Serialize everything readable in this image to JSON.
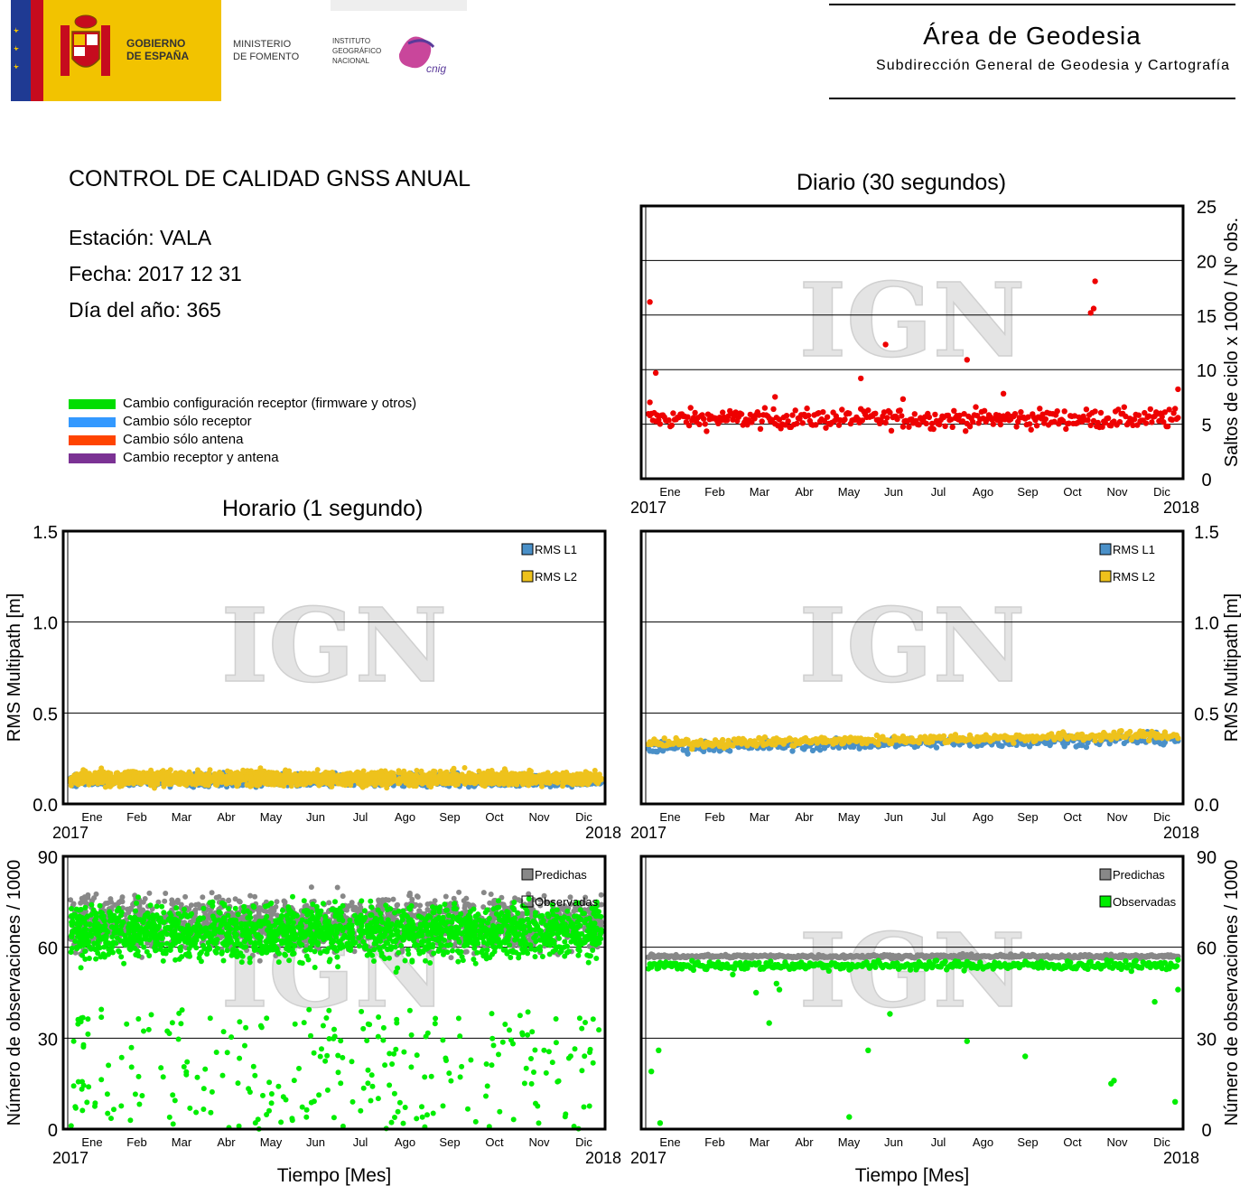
{
  "header": {
    "gobierno": [
      "GOBIERNO",
      "DE ESPAÑA"
    ],
    "ministerio": [
      "MINISTERIO",
      "DE FOMENTO"
    ],
    "instituto": [
      "INSTITUTO",
      "GEOGRÁFICO",
      "NACIONAL"
    ],
    "cnig": "cnig",
    "area_title": "Área de Geodesia",
    "area_subtitle": "Subdirección General de Geodesia y Cartografía"
  },
  "report": {
    "title": "CONTROL DE CALIDAD GNSS ANUAL",
    "station": "Estación: VALA",
    "date": "Fecha: 2017 12 31",
    "doy": "Día del año: 365"
  },
  "legend": [
    {
      "label": "Cambio configuración receptor (firmware y otros)",
      "color": "#00dd00"
    },
    {
      "label": "Cambio sólo receptor",
      "color": "#3399ff"
    },
    {
      "label": "Cambio sólo antena",
      "color": "#ff4400"
    },
    {
      "label": "Cambio receptor y antena",
      "color": "#7b3294"
    }
  ],
  "section_titles": {
    "daily": "Diario (30 segundos)",
    "hourly": "Horario (1 segundo)"
  },
  "watermark": "IGN",
  "axis_labels": {
    "months": [
      "Ene",
      "Feb",
      "Mar",
      "Abr",
      "May",
      "Jun",
      "Jul",
      "Ago",
      "Sep",
      "Oct",
      "Nov",
      "Dic"
    ],
    "year_start": "2017",
    "year_end": "2018",
    "xlabel": "Tiempo [Mes]",
    "ylabel_cycle": "Saltos de ciclo x 1000 / Nº obs.",
    "ylabel_multipath": "RMS Multipath [m]",
    "ylabel_obs": "Número de observaciones / 1000"
  },
  "chart_data": [
    {
      "id": "cycle-slips-daily",
      "type": "scatter",
      "title": "Diario (30 segundos)",
      "ylabel": "Saltos de ciclo x 1000 / Nº obs.",
      "ylim": [
        0,
        25
      ],
      "yticks": [
        0,
        5,
        10,
        15,
        20,
        25
      ],
      "xlim": [
        "2017-01-01",
        "2018-01-01"
      ],
      "grid": true,
      "series": [
        {
          "color": "#ee0000",
          "level": 5.5,
          "spread": 0.9,
          "outliers": [
            [
              1,
              16.2
            ],
            [
              1,
              7
            ],
            [
              5,
              9.7
            ],
            [
              87,
              7.5
            ],
            [
              146,
              9.2
            ],
            [
              163,
              12.3
            ],
            [
              175,
              7.3
            ],
            [
              219,
              10.9
            ],
            [
              244,
              7.8
            ],
            [
              304,
              15.2
            ],
            [
              306,
              15.6
            ],
            [
              307,
              18.1
            ],
            [
              364,
              8.2
            ]
          ]
        }
      ]
    },
    {
      "id": "multipath-hourly",
      "type": "scatter",
      "ylabel": "RMS Multipath [m]",
      "ylim": [
        0,
        1.5
      ],
      "yticks": [
        0,
        0.5,
        1.0,
        1.5
      ],
      "xlim": [
        "2017-01-01",
        "2018-01-01"
      ],
      "grid": true,
      "legend_position": "top-right",
      "series": [
        {
          "name": "RMS L1",
          "color": "#4a90c8",
          "level": 0.13,
          "spread": 0.03
        },
        {
          "name": "RMS L2",
          "color": "#eec21c",
          "level": 0.14,
          "spread": 0.04
        }
      ]
    },
    {
      "id": "multipath-daily",
      "type": "scatter",
      "ylabel": "RMS Multipath [m]",
      "ylim": [
        0,
        1.5
      ],
      "yticks": [
        0,
        0.5,
        1.0,
        1.5
      ],
      "xlim": [
        "2017-01-01",
        "2018-01-01"
      ],
      "grid": true,
      "legend_position": "top-right",
      "series": [
        {
          "name": "RMS L1",
          "color": "#4a90c8",
          "level_start": 0.31,
          "level_end": 0.36,
          "spread": 0.03
        },
        {
          "name": "RMS L2",
          "color": "#eec21c",
          "level_start": 0.33,
          "level_end": 0.38,
          "spread": 0.025
        }
      ]
    },
    {
      "id": "observations-hourly",
      "type": "scatter",
      "ylabel": "Número de observaciones / 1000",
      "xlabel": "Tiempo [Mes]",
      "ylim": [
        0,
        90
      ],
      "yticks": [
        0,
        30,
        60,
        90
      ],
      "xlim": [
        "2017-01-01",
        "2018-01-01"
      ],
      "grid": true,
      "legend_position": "top-right",
      "series": [
        {
          "name": "Predichas",
          "color": "#888888",
          "level": 68,
          "spread": 9
        },
        {
          "name": "Observadas",
          "color": "#00ee00",
          "level": 65,
          "spread": 9
        }
      ]
    },
    {
      "id": "observations-daily",
      "type": "scatter",
      "ylabel": "Número de observaciones / 1000",
      "xlabel": "Tiempo [Mes]",
      "ylim": [
        0,
        90
      ],
      "yticks": [
        0,
        30,
        60,
        90
      ],
      "xlim": [
        "2017-01-01",
        "2018-01-01"
      ],
      "grid": true,
      "legend_position": "top-right",
      "series": [
        {
          "name": "Predichas",
          "color": "#888888",
          "level": 57,
          "spread": 0.6
        },
        {
          "name": "Observadas",
          "color": "#00ee00",
          "level": 54,
          "spread": 1.5,
          "outliers": [
            [
              2,
              19
            ],
            [
              7,
              26
            ],
            [
              8,
              2
            ],
            [
              58,
              51
            ],
            [
              74,
              45
            ],
            [
              83,
              35
            ],
            [
              88,
              48
            ],
            [
              90,
              46
            ],
            [
              138,
              4
            ],
            [
              151,
              26
            ],
            [
              166,
              38
            ],
            [
              219,
              29
            ],
            [
              259,
              24
            ],
            [
              318,
              15
            ],
            [
              320,
              16
            ],
            [
              348,
              42
            ],
            [
              362,
              9
            ],
            [
              364,
              46
            ]
          ]
        }
      ]
    }
  ]
}
